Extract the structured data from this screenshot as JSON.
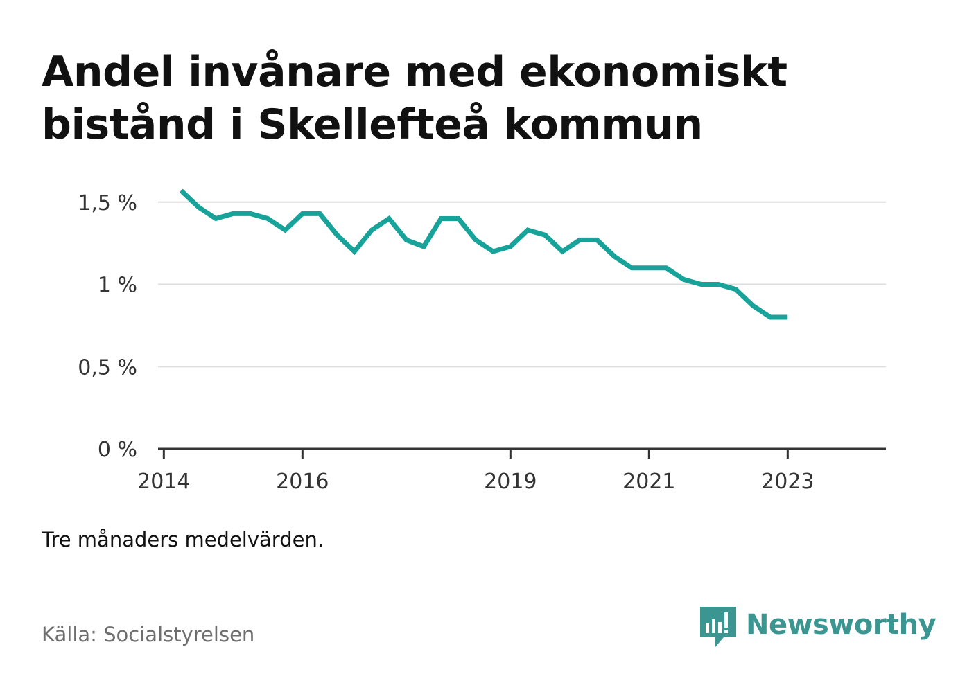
{
  "header": {
    "title": "Andel invånare med ekonomiskt bistånd i Skellefteå kommun"
  },
  "footer": {
    "note": "Tre månaders medelvärden.",
    "source": "Källa: Socialstyrelsen",
    "brand": "Newsworthy"
  },
  "colors": {
    "line": "#17a29a",
    "grid": "#dddddd",
    "axis": "#333333",
    "brand": "#3b9590",
    "source_text": "#6e6e6e"
  },
  "chart_data": {
    "type": "line",
    "title": "Andel invånare med ekonomiskt bistånd i Skellefteå kommun",
    "xlabel": "",
    "ylabel": "",
    "x_axis": {
      "type": "date",
      "range": [
        "2013-12-01",
        "2024-06-01"
      ],
      "ticks": [
        {
          "label": "2014",
          "date": "2014-01-01"
        },
        {
          "label": "2016",
          "date": "2016-01-01"
        },
        {
          "label": "2019",
          "date": "2019-01-01"
        },
        {
          "label": "2021",
          "date": "2021-01-01"
        },
        {
          "label": "2023",
          "date": "2023-01-01"
        }
      ]
    },
    "y_axis": {
      "range": [
        0,
        1.6
      ],
      "ticks": [
        {
          "label": "0 %",
          "value": 0
        },
        {
          "label": "0,5 %",
          "value": 0.5
        },
        {
          "label": "1 %",
          "value": 1
        },
        {
          "label": "1,5 %",
          "value": 1.5
        }
      ]
    },
    "grid": true,
    "series": [
      {
        "color": "#17a29a",
        "points": [
          {
            "x": "2014-04-01",
            "y": 1.57
          },
          {
            "x": "2014-07-01",
            "y": 1.47
          },
          {
            "x": "2014-10-01",
            "y": 1.4
          },
          {
            "x": "2015-01-01",
            "y": 1.43
          },
          {
            "x": "2015-04-01",
            "y": 1.43
          },
          {
            "x": "2015-07-01",
            "y": 1.4
          },
          {
            "x": "2015-10-01",
            "y": 1.33
          },
          {
            "x": "2016-01-01",
            "y": 1.43
          },
          {
            "x": "2016-04-01",
            "y": 1.43
          },
          {
            "x": "2016-07-01",
            "y": 1.3
          },
          {
            "x": "2016-10-01",
            "y": 1.2
          },
          {
            "x": "2017-01-01",
            "y": 1.33
          },
          {
            "x": "2017-04-01",
            "y": 1.4
          },
          {
            "x": "2017-07-01",
            "y": 1.27
          },
          {
            "x": "2017-10-01",
            "y": 1.23
          },
          {
            "x": "2018-01-01",
            "y": 1.4
          },
          {
            "x": "2018-04-01",
            "y": 1.4
          },
          {
            "x": "2018-07-01",
            "y": 1.27
          },
          {
            "x": "2018-10-01",
            "y": 1.2
          },
          {
            "x": "2019-01-01",
            "y": 1.23
          },
          {
            "x": "2019-04-01",
            "y": 1.33
          },
          {
            "x": "2019-07-01",
            "y": 1.3
          },
          {
            "x": "2019-10-01",
            "y": 1.2
          },
          {
            "x": "2020-01-01",
            "y": 1.27
          },
          {
            "x": "2020-04-01",
            "y": 1.27
          },
          {
            "x": "2020-07-01",
            "y": 1.17
          },
          {
            "x": "2020-10-01",
            "y": 1.1
          },
          {
            "x": "2021-01-01",
            "y": 1.1
          },
          {
            "x": "2021-04-01",
            "y": 1.1
          },
          {
            "x": "2021-07-01",
            "y": 1.03
          },
          {
            "x": "2021-10-01",
            "y": 1.0
          },
          {
            "x": "2022-01-01",
            "y": 1.0
          },
          {
            "x": "2022-04-01",
            "y": 0.97
          },
          {
            "x": "2022-07-01",
            "y": 0.87
          },
          {
            "x": "2022-10-01",
            "y": 0.8
          },
          {
            "x": "2023-01-01",
            "y": 0.8
          }
        ]
      }
    ]
  }
}
